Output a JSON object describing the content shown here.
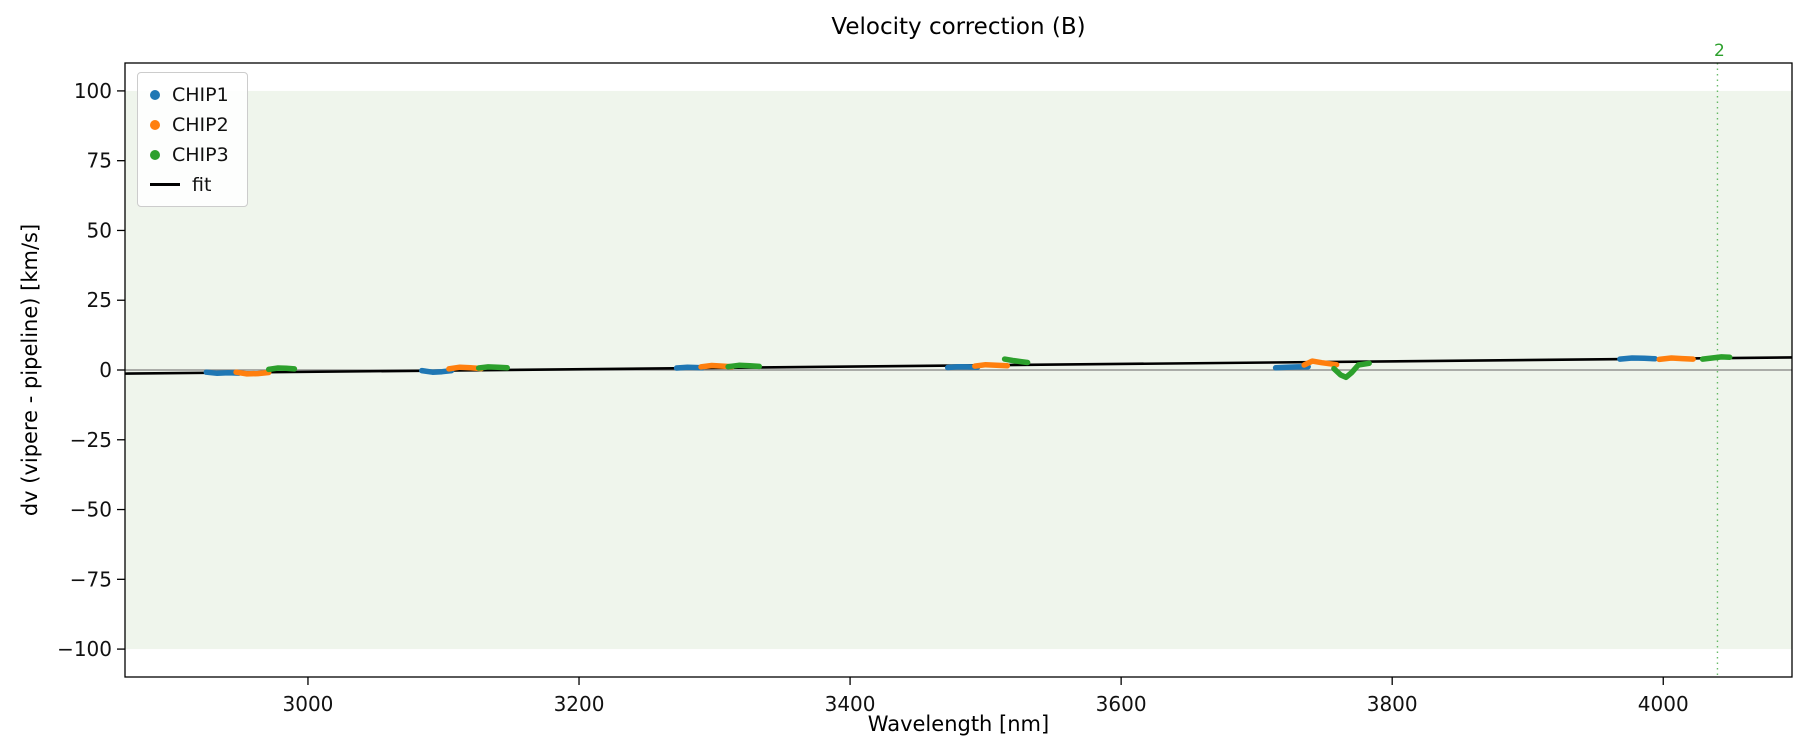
{
  "title": "Velocity correction (B)",
  "legend": {
    "entries": [
      {
        "label": "CHIP1",
        "color": "#1f77b4",
        "marker": "dot"
      },
      {
        "label": "CHIP2",
        "color": "#ff7f0e",
        "marker": "dot"
      },
      {
        "label": "CHIP3",
        "color": "#2ca02c",
        "marker": "dot"
      },
      {
        "label": "fit",
        "color": "#000000",
        "marker": "line"
      }
    ]
  },
  "chart_data": {
    "type": "scatter",
    "title": "Velocity correction (B)",
    "xlabel": "Wavelength [nm]",
    "ylabel": "dv (vipere - pipeline) [km/s]",
    "xlim": [
      2865,
      4095
    ],
    "ylim": [
      -110,
      110
    ],
    "grid": false,
    "legend_position": "upper left",
    "xticks": {
      "values": [
        3000,
        3200,
        3400,
        3600,
        3800,
        4000
      ],
      "labels": [
        "3000",
        "3200",
        "3400",
        "3600",
        "3800",
        "4000"
      ]
    },
    "yticks": {
      "values": [
        -100,
        -75,
        -50,
        -25,
        0,
        25,
        50,
        75,
        100
      ],
      "labels": [
        "−100",
        "−75",
        "−50",
        "−25",
        "0",
        "25",
        "50",
        "75",
        "100"
      ]
    },
    "background_span": {
      "ymin": -100,
      "ymax": 100,
      "color": "#eff5ec"
    },
    "zero_line": {
      "y": 0,
      "color": "#808080"
    },
    "fit_line": {
      "name": "fit",
      "color": "#000000",
      "x": [
        2865,
        4095
      ],
      "y": [
        -1.3,
        4.5
      ]
    },
    "vline": {
      "x": 4040,
      "label": "2",
      "color": "#2ca02c",
      "style": "dotted"
    },
    "series": [
      {
        "name": "CHIP1",
        "color": "#1f77b4",
        "segments": [
          [
            [
              2925,
              -0.8
            ],
            [
              2933,
              -1.2
            ],
            [
              2941,
              -1.0
            ],
            [
              2949,
              -1.1
            ]
          ],
          [
            [
              3084,
              -0.2
            ],
            [
              3092,
              -0.8
            ],
            [
              3099,
              -0.6
            ],
            [
              3106,
              -0.2
            ]
          ],
          [
            [
              3272,
              0.7
            ],
            [
              3280,
              1.0
            ],
            [
              3286,
              0.9
            ],
            [
              3291,
              0.8
            ]
          ],
          [
            [
              3472,
              0.9
            ],
            [
              3480,
              1.2
            ],
            [
              3487,
              1.1
            ],
            [
              3494,
              1.0
            ]
          ],
          [
            [
              3714,
              0.8
            ],
            [
              3722,
              1.0
            ],
            [
              3730,
              1.1
            ],
            [
              3738,
              1.2
            ]
          ],
          [
            [
              3968,
              3.9
            ],
            [
              3977,
              4.3
            ],
            [
              3986,
              4.2
            ],
            [
              3994,
              4.0
            ]
          ]
        ]
      },
      {
        "name": "CHIP2",
        "color": "#ff7f0e",
        "segments": [
          [
            [
              2947,
              -0.8
            ],
            [
              2955,
              -1.4
            ],
            [
              2963,
              -1.3
            ],
            [
              2971,
              -0.9
            ]
          ],
          [
            [
              3104,
              0.4
            ],
            [
              3112,
              1.0
            ],
            [
              3120,
              0.8
            ],
            [
              3128,
              0.5
            ]
          ],
          [
            [
              3290,
              1.1
            ],
            [
              3298,
              1.6
            ],
            [
              3306,
              1.4
            ],
            [
              3313,
              1.2
            ]
          ],
          [
            [
              3492,
              1.4
            ],
            [
              3500,
              1.9
            ],
            [
              3508,
              1.7
            ],
            [
              3516,
              1.5
            ]
          ],
          [
            [
              3735,
              1.8
            ],
            [
              3741,
              3.2
            ],
            [
              3748,
              2.6
            ],
            [
              3759,
              1.9
            ]
          ],
          [
            [
              3997,
              3.8
            ],
            [
              4006,
              4.3
            ],
            [
              4014,
              4.1
            ],
            [
              4022,
              3.9
            ]
          ]
        ]
      },
      {
        "name": "CHIP3",
        "color": "#2ca02c",
        "segments": [
          [
            [
              2971,
              0.2
            ],
            [
              2978,
              0.7
            ],
            [
              2984,
              0.6
            ],
            [
              2990,
              0.4
            ]
          ],
          [
            [
              3126,
              0.7
            ],
            [
              3133,
              1.1
            ],
            [
              3140,
              1.0
            ],
            [
              3147,
              0.8
            ]
          ],
          [
            [
              3310,
              1.2
            ],
            [
              3318,
              1.7
            ],
            [
              3326,
              1.5
            ],
            [
              3333,
              1.3
            ]
          ],
          [
            [
              3514,
              3.9
            ],
            [
              3520,
              3.4
            ],
            [
              3526,
              3.0
            ],
            [
              3531,
              2.7
            ]
          ],
          [
            [
              3757,
              0.5
            ],
            [
              3762,
              -1.8
            ],
            [
              3766,
              -2.6
            ],
            [
              3770,
              -1.0
            ],
            [
              3775,
              1.8
            ],
            [
              3783,
              2.4
            ]
          ],
          [
            [
              4029,
              3.9
            ],
            [
              4036,
              4.3
            ],
            [
              4043,
              4.7
            ],
            [
              4049,
              4.6
            ]
          ]
        ]
      }
    ]
  }
}
